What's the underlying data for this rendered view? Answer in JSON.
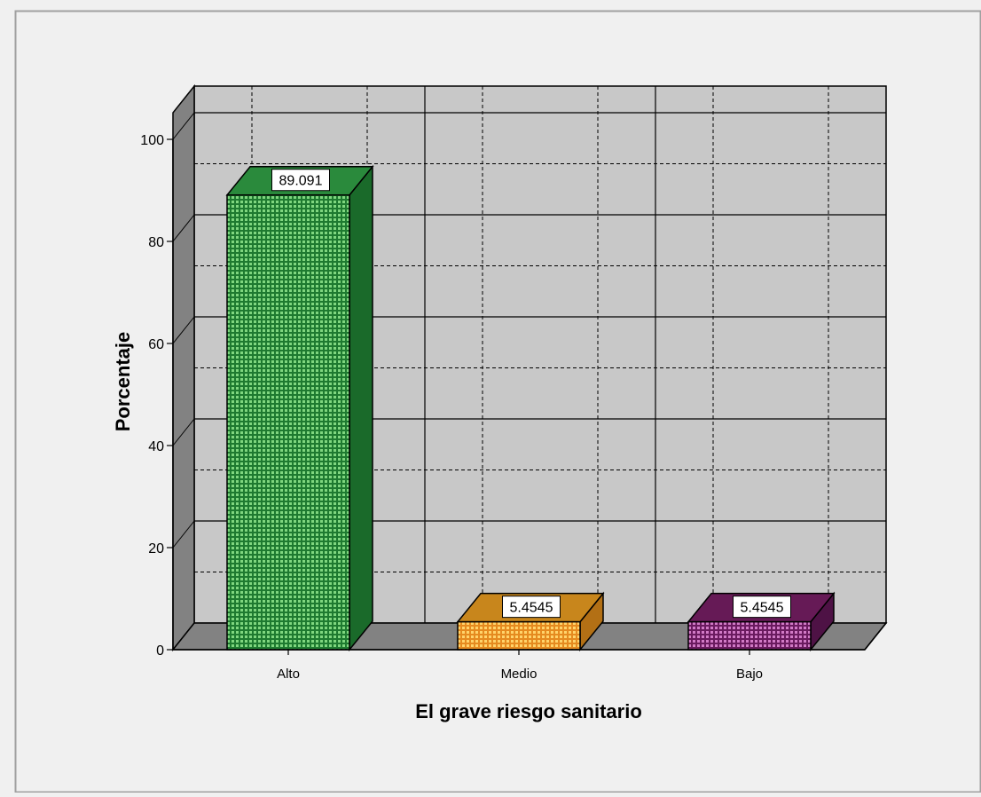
{
  "chart_data": {
    "type": "bar",
    "categories": [
      "Alto",
      "Medio",
      "Bajo"
    ],
    "values": [
      89.091,
      5.4545,
      5.4545
    ],
    "value_labels": [
      "89.091",
      "5.4545",
      "5.4545"
    ],
    "title": "",
    "xlabel": "El grave riesgo sanitario",
    "ylabel": "Porcentaje",
    "ylim": [
      0,
      100
    ],
    "yticks": [
      "0",
      "20",
      "40",
      "60",
      "80",
      "100"
    ],
    "grid": true,
    "legend": "none",
    "style": "3d",
    "colors": {
      "background": "#f0f0f0",
      "plot_back": "#c8c8c8",
      "plot_side": "#828282",
      "floor": "#828282",
      "bars": [
        "#1e7a30",
        "#e58a1f",
        "#6a1b5f"
      ],
      "bar_tops": [
        "#2a8a3c",
        "#c8861c",
        "#661a56"
      ],
      "bar_sides": [
        "#1a6a2a",
        "#b37015",
        "#4e1245"
      ],
      "pattern_dots": [
        "#7fd67f",
        "#ffd36b",
        "#d17ac6"
      ]
    }
  }
}
